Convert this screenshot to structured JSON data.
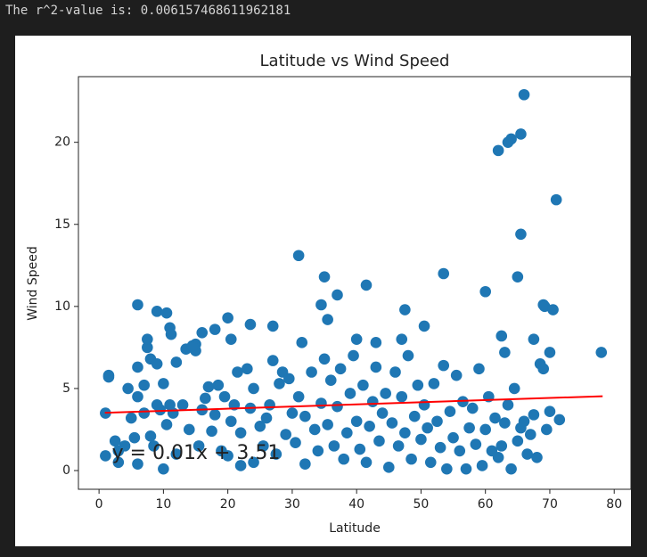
{
  "output_text": "The r^2-value is: 0.006157468611962181",
  "chart_data": {
    "type": "scatter",
    "title": "Latitude vs Wind Speed",
    "xlabel": "Latitude",
    "ylabel": "Wind Speed",
    "xlim": [
      -3.2,
      82.6
    ],
    "ylim": [
      -1.14,
      24.0
    ],
    "xticks": [
      0,
      10,
      20,
      30,
      40,
      50,
      60,
      70,
      80
    ],
    "yticks": [
      0,
      5,
      10,
      15,
      20
    ],
    "x": [
      1,
      1,
      1.5,
      1.5,
      2.5,
      3,
      3,
      4,
      4.5,
      5,
      5.5,
      6,
      6,
      6,
      7,
      7,
      7.5,
      8,
      8,
      8.5,
      9,
      9,
      9.5,
      10,
      10,
      10.5,
      11,
      11.5,
      12,
      12,
      13,
      13.5,
      14,
      15,
      15,
      15.5,
      16,
      16.5,
      17,
      17.5,
      18,
      18.5,
      19,
      19.5,
      20,
      20.5,
      21,
      21.5,
      22,
      22,
      23,
      23.5,
      24,
      24,
      25,
      25.5,
      26,
      26.5,
      27,
      27.5,
      28,
      28.5,
      29,
      29.5,
      30,
      30.5,
      31,
      32,
      32,
      33,
      33.5,
      34,
      34.5,
      35,
      35.5,
      36,
      36.5,
      37,
      37.5,
      38,
      38.5,
      39,
      39.5,
      40,
      40.5,
      41,
      41.5,
      42,
      42.5,
      43,
      43.5,
      44,
      44.5,
      45,
      45.5,
      46,
      46.5,
      47,
      47.5,
      48,
      48.5,
      49,
      49.5,
      50,
      50.5,
      51,
      51.5,
      52,
      52.5,
      53,
      53.5,
      54,
      54.5,
      55,
      55.5,
      56,
      56.5,
      57,
      57.5,
      58,
      58.5,
      59,
      59.5,
      60,
      60.5,
      61,
      61.5,
      62,
      62.5,
      63,
      63.5,
      64,
      64.5,
      65,
      65.5,
      66,
      66.5,
      67,
      67.5,
      68,
      68.5,
      69,
      69.5,
      70,
      71.5,
      66,
      64,
      63.5,
      65.5,
      62,
      71,
      65.5,
      31,
      53.5,
      35,
      65,
      41.5,
      60,
      37,
      6,
      34.5,
      69,
      69.2,
      9,
      10.5,
      70.5,
      47.5,
      35.5,
      20,
      23.5,
      27,
      50.5,
      11,
      11.2,
      18,
      62.5,
      16,
      7.5,
      20.5,
      67.5,
      40,
      31.5,
      47,
      43,
      14.5,
      78,
      70,
      63
    ],
    "series": [
      {
        "color": "#1f77b4",
        "values": [
          3.5,
          0.9,
          5.8,
          5.7,
          1.8,
          0.5,
          1.2,
          1.5,
          5.0,
          3.2,
          2.0,
          6.3,
          4.5,
          0.4,
          5.2,
          3.5,
          7.5,
          6.8,
          2.1,
          1.5,
          4.0,
          6.5,
          3.7,
          0.1,
          5.3,
          2.8,
          4.0,
          3.5,
          6.6,
          1.0,
          4.0,
          7.4,
          2.5,
          7.7,
          7.3,
          1.5,
          3.7,
          4.4,
          5.1,
          2.4,
          3.4,
          5.2,
          1.2,
          4.5,
          0.9,
          3.0,
          4.0,
          6.0,
          0.3,
          2.3,
          6.2,
          3.8,
          0.5,
          5.0,
          2.7,
          1.5,
          3.2,
          4.0,
          6.7,
          1.0,
          5.3,
          6.0,
          2.2,
          5.6,
          3.5,
          1.7,
          4.5,
          0.4,
          3.3,
          6.0,
          2.5,
          1.2,
          4.1,
          6.8,
          2.8,
          5.5,
          1.5,
          3.9,
          6.2,
          0.7,
          2.3,
          4.7,
          7.0,
          3.0,
          1.3,
          5.2,
          0.5,
          2.7,
          4.2,
          6.3,
          1.8,
          3.5,
          4.7,
          0.2,
          2.9,
          6.0,
          1.5,
          4.5,
          2.3,
          7.0,
          0.7,
          3.3,
          5.2,
          1.9,
          4.0,
          2.6,
          0.5,
          5.3,
          3.0,
          1.4,
          6.4,
          0.1,
          3.6,
          2.0,
          5.8,
          1.2,
          4.2,
          0.1,
          2.6,
          3.8,
          1.6,
          6.2,
          0.3,
          2.5,
          4.5,
          1.2,
          3.2,
          0.8,
          1.5,
          2.9,
          4.0,
          0.1,
          5.0,
          1.8,
          2.6,
          3.0,
          1.0,
          2.2,
          3.4,
          0.8,
          6.5,
          6.2,
          2.5,
          3.6,
          3.1,
          22.9,
          20.2,
          20.0,
          20.5,
          19.5,
          16.5,
          14.4,
          13.1,
          12.0,
          11.8,
          11.8,
          11.3,
          10.9,
          10.7,
          10.1,
          10.1,
          10.1,
          10.0,
          9.7,
          9.6,
          9.8,
          9.8,
          9.2,
          9.3,
          8.9,
          8.8,
          8.8,
          8.7,
          8.3,
          8.6,
          8.2,
          8.4,
          8.0,
          8.0,
          8.0,
          8.0,
          7.8,
          8.0,
          7.8,
          7.6,
          7.2,
          7.2,
          7.2
        ]
      }
    ],
    "fit": {
      "color": "#ff0000",
      "x": [
        0.9,
        78.2
      ],
      "values": [
        3.52,
        4.53
      ]
    },
    "annotation": {
      "text": "y = 0.01x + 3.51",
      "x": 2,
      "y": 0.7,
      "color": "#ff0000"
    }
  }
}
